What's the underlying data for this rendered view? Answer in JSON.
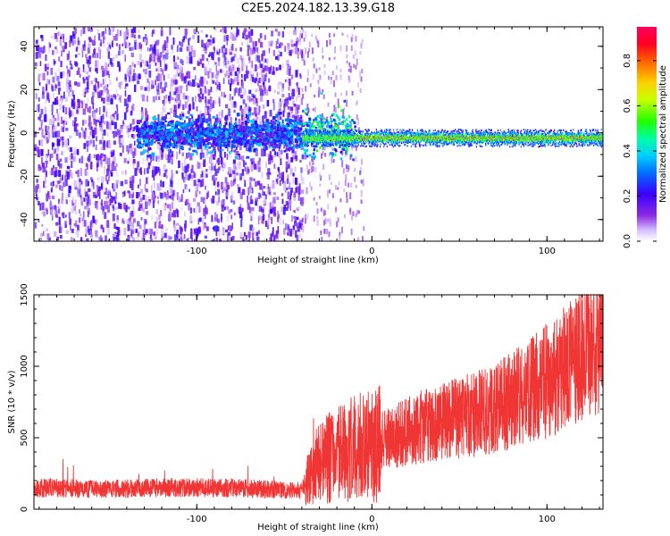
{
  "title": "C2E5.2024.182.13.39.G18",
  "colors": {
    "snr_line": "#f03535",
    "axis": "#000000",
    "grid": "#888888"
  },
  "chart_data": [
    {
      "type": "heatmap",
      "title": "",
      "xlabel": "Height of straight line (km)",
      "ylabel": "Frequency (Hz)",
      "xlim": [
        -193,
        132
      ],
      "ylim": [
        -50,
        49
      ],
      "x_ticks": [
        -100,
        0,
        100
      ],
      "x_tick_labels": [
        "-100",
        "0",
        "100"
      ],
      "y_ticks": [
        -40,
        -20,
        0,
        20,
        40
      ],
      "y_tick_labels": [
        "-40",
        "-20",
        "0",
        "20",
        "40"
      ],
      "grid": false,
      "colorbar": {
        "label": "Normalized spectral amplitude",
        "range": [
          0,
          0.95
        ],
        "ticks": [
          0.0,
          0.2,
          0.4,
          0.6,
          0.8
        ],
        "tick_labels": [
          "0.0",
          "0.2",
          "0.4",
          "0.6",
          "0.8"
        ],
        "colormap": "rainbow"
      },
      "description_regions": [
        {
          "x_range": [
            -193,
            -40
          ],
          "pattern": "scattered noise",
          "amplitude": [
            0.05,
            0.2
          ]
        },
        {
          "x_range": [
            -135,
            -40
          ],
          "freq_center": 0,
          "pattern": "band",
          "amplitude": [
            0.15,
            0.35
          ]
        },
        {
          "x_range": [
            -40,
            132
          ],
          "freq_center": -2,
          "pattern": "narrow band",
          "amplitude": [
            0.3,
            0.9
          ]
        }
      ]
    },
    {
      "type": "line",
      "title": "",
      "xlabel": "Height of straight line (km)",
      "ylabel": "SNR (10 * v/v)",
      "xlim": [
        -193,
        132
      ],
      "ylim": [
        0,
        1500
      ],
      "x_ticks": [
        -100,
        0,
        100
      ],
      "x_tick_labels": [
        "-100",
        "0",
        "100"
      ],
      "y_ticks": [
        0,
        500,
        1000,
        1500
      ],
      "y_tick_labels": [
        "0",
        "500",
        "1000",
        "1500"
      ],
      "grid": false,
      "series": [
        {
          "x": [
            -193,
            -180,
            -160,
            -140,
            -120,
            -100,
            -80,
            -60,
            -40,
            -35,
            -30,
            -20,
            -10,
            0,
            10,
            20,
            30,
            40,
            50,
            60,
            70,
            80,
            90,
            100,
            110,
            120,
            125,
            130,
            132
          ],
          "y": [
            150,
            150,
            140,
            145,
            150,
            150,
            150,
            140,
            130,
            250,
            330,
            380,
            420,
            450,
            490,
            540,
            580,
            610,
            640,
            670,
            700,
            760,
            820,
            900,
            980,
            1080,
            1140,
            1220,
            1280
          ]
        }
      ]
    }
  ]
}
